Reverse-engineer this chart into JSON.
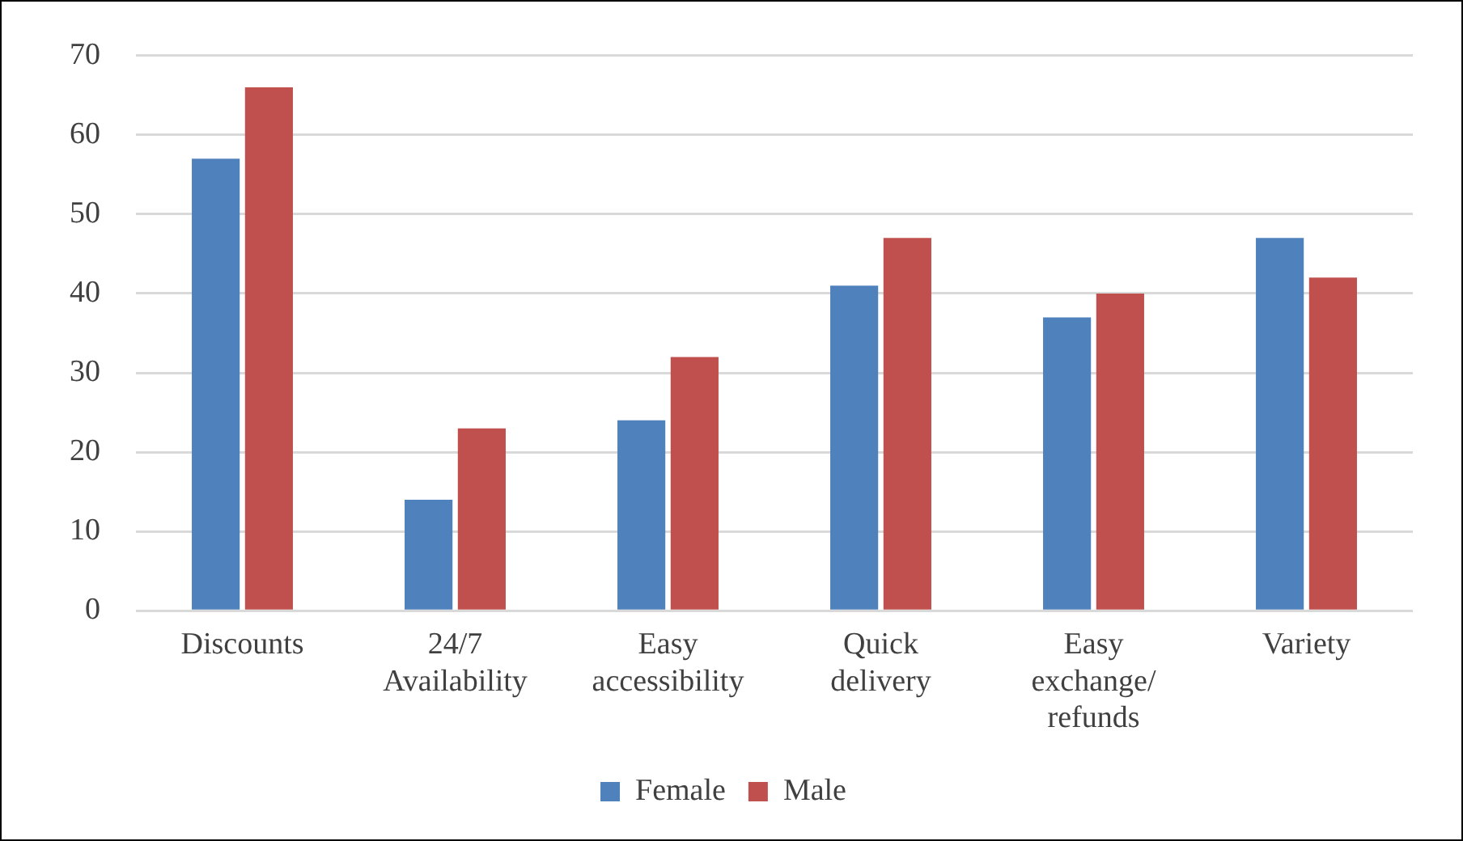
{
  "chart_data": {
    "type": "bar",
    "categories": [
      "Discounts",
      "24/7 Availability",
      "Easy accessibility",
      "Quick delivery",
      "Easy exchange/ refunds",
      "Variety"
    ],
    "series": [
      {
        "name": "Female",
        "color": "#4f81bd",
        "values": [
          57,
          14,
          24,
          41,
          37,
          47
        ]
      },
      {
        "name": "Male",
        "color": "#c0504d",
        "values": [
          66,
          23,
          32,
          47,
          40,
          42
        ]
      }
    ],
    "ylim": [
      0,
      70
    ],
    "yticks": [
      0,
      10,
      20,
      30,
      40,
      50,
      60,
      70
    ],
    "grid": "y",
    "legend": "bottom"
  }
}
